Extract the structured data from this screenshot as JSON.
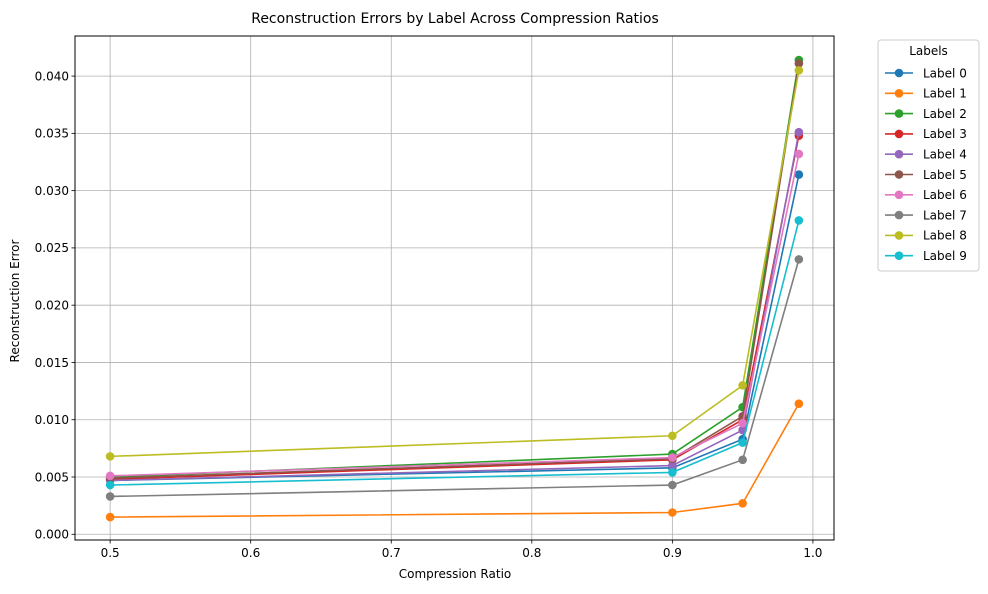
{
  "chart_data": {
    "type": "line",
    "title": "Reconstruction Errors by Label Across Compression Ratios",
    "xlabel": "Compression Ratio",
    "ylabel": "Reconstruction Error",
    "xlim": [
      0.475,
      1.015
    ],
    "ylim": [
      -0.0005,
      0.0435
    ],
    "x": [
      0.5,
      0.9,
      0.95,
      0.99
    ],
    "xticks": [
      0.5,
      0.6,
      0.7,
      0.8,
      0.9,
      1.0
    ],
    "xtick_labels": [
      "0.5",
      "0.6",
      "0.7",
      "0.8",
      "0.9",
      "1.0"
    ],
    "yticks": [
      0.0,
      0.005,
      0.01,
      0.015,
      0.02,
      0.025,
      0.03,
      0.035,
      0.04
    ],
    "ytick_labels": [
      "0.000",
      "0.005",
      "0.010",
      "0.015",
      "0.020",
      "0.025",
      "0.030",
      "0.035",
      "0.040"
    ],
    "grid": true,
    "legend": {
      "title": "Labels",
      "placement": "outside-right"
    },
    "series": [
      {
        "name": "Label 0",
        "color": "#1f77b4",
        "values": [
          0.0047,
          0.0058,
          0.0083,
          0.0314
        ]
      },
      {
        "name": "Label 1",
        "color": "#ff7f0e",
        "values": [
          0.0015,
          0.0019,
          0.0027,
          0.0114
        ]
      },
      {
        "name": "Label 2",
        "color": "#2ca02c",
        "values": [
          0.005,
          0.007,
          0.0111,
          0.0414
        ]
      },
      {
        "name": "Label 3",
        "color": "#d62728",
        "values": [
          0.0048,
          0.0065,
          0.01,
          0.0348
        ]
      },
      {
        "name": "Label 4",
        "color": "#9467bd",
        "values": [
          0.0047,
          0.006,
          0.0091,
          0.0351
        ]
      },
      {
        "name": "Label 5",
        "color": "#8c564b",
        "values": [
          0.0049,
          0.0066,
          0.0103,
          0.0411
        ]
      },
      {
        "name": "Label 6",
        "color": "#e377c2",
        "values": [
          0.0051,
          0.0067,
          0.0097,
          0.0332
        ]
      },
      {
        "name": "Label 7",
        "color": "#7f7f7f",
        "values": [
          0.0033,
          0.0043,
          0.0065,
          0.024
        ]
      },
      {
        "name": "Label 8",
        "color": "#bcbd22",
        "values": [
          0.0068,
          0.0086,
          0.013,
          0.0405
        ]
      },
      {
        "name": "Label 9",
        "color": "#17becf",
        "values": [
          0.0043,
          0.0054,
          0.008,
          0.0274
        ]
      }
    ]
  }
}
